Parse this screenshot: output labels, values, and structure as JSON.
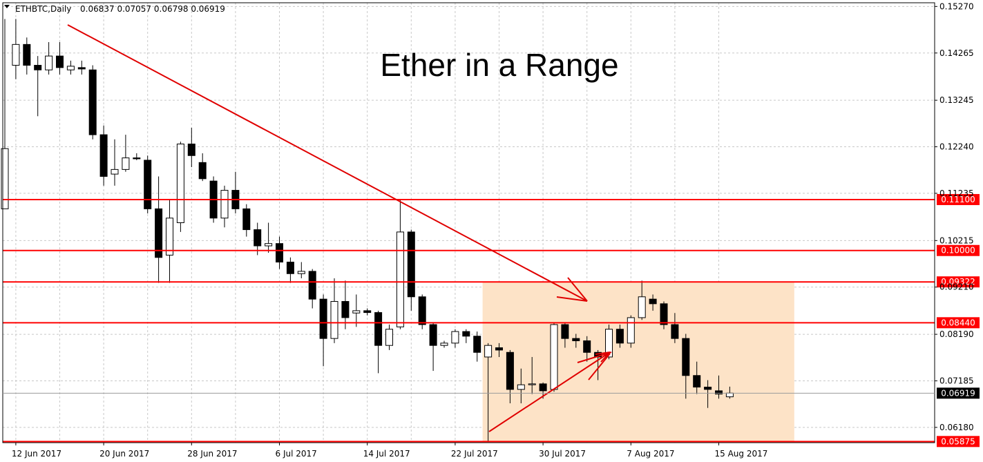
{
  "header": {
    "symbol_text": "ETHBTC,Daily",
    "ohlc_text": "0.06837 0.07057 0.06798 0.06919",
    "menu_icon": "triangle-down-icon"
  },
  "annotation_title": "Ether in a Range",
  "colors": {
    "background": "#ffffff",
    "grid": "#c8c8c8",
    "candle_bull": "#ffffff",
    "candle_bear": "#000000",
    "level_line": "#ff0000",
    "range_box": "#fde3c7",
    "arrow": "#e00000"
  },
  "chart_data": {
    "type": "candlestick",
    "symbol": "ETHBTC",
    "timeframe": "Daily",
    "ylim": [
      0.0585,
      0.1535
    ],
    "y_ticks": [
      "0.15270",
      "0.14265",
      "0.13245",
      "0.12240",
      "0.11235",
      "0.10215",
      "0.09210",
      "0.08190",
      "0.07185",
      "0.06180"
    ],
    "x_ticks": [
      "12 Jun 2017",
      "20 Jun 2017",
      "28 Jun 2017",
      "6 Jul 2017",
      "14 Jul 2017",
      "22 Jul 2017",
      "30 Jul 2017",
      "7 Aug 2017",
      "15 Aug 2017"
    ],
    "grid": true,
    "current_price": "0.06919",
    "levels": [
      {
        "value": 0.111,
        "label": "0.11100"
      },
      {
        "value": 0.1,
        "label": "0.10000"
      },
      {
        "value": 0.09322,
        "label": "0.09322"
      },
      {
        "value": 0.0844,
        "label": "0.08440"
      },
      {
        "value": 0.05875,
        "label": "0.05875"
      }
    ],
    "range_box": {
      "start": "22 Jul 2017",
      "end": "17 Aug 2017",
      "high": 0.09322,
      "low": 0.05875
    },
    "candles": [
      {
        "d": "11 Jun",
        "o": 0.109,
        "h": 0.15,
        "l": 0.109,
        "c": 0.122
      },
      {
        "d": "12 Jun",
        "o": 0.14,
        "h": 0.15,
        "l": 0.137,
        "c": 0.1445
      },
      {
        "d": "13 Jun",
        "o": 0.1445,
        "h": 0.146,
        "l": 0.138,
        "c": 0.14
      },
      {
        "d": "14 Jun",
        "o": 0.14,
        "h": 0.142,
        "l": 0.129,
        "c": 0.139
      },
      {
        "d": "15 Jun",
        "o": 0.139,
        "h": 0.145,
        "l": 0.138,
        "c": 0.142
      },
      {
        "d": "16 Jun",
        "o": 0.142,
        "h": 0.145,
        "l": 0.138,
        "c": 0.1395
      },
      {
        "d": "17 Jun",
        "o": 0.139,
        "h": 0.141,
        "l": 0.138,
        "c": 0.1398
      },
      {
        "d": "18 Jun",
        "o": 0.1395,
        "h": 0.141,
        "l": 0.138,
        "c": 0.1392
      },
      {
        "d": "19 Jun",
        "o": 0.139,
        "h": 0.14,
        "l": 0.124,
        "c": 0.125
      },
      {
        "d": "20 Jun",
        "o": 0.125,
        "h": 0.127,
        "l": 0.114,
        "c": 0.116
      },
      {
        "d": "21 Jun",
        "o": 0.1165,
        "h": 0.124,
        "l": 0.114,
        "c": 0.1175
      },
      {
        "d": "22 Jun",
        "o": 0.1175,
        "h": 0.125,
        "l": 0.117,
        "c": 0.12
      },
      {
        "d": "23 Jun",
        "o": 0.12,
        "h": 0.121,
        "l": 0.1195,
        "c": 0.1198
      },
      {
        "d": "24 Jun",
        "o": 0.1195,
        "h": 0.1205,
        "l": 0.108,
        "c": 0.109
      },
      {
        "d": "25 Jun",
        "o": 0.109,
        "h": 0.116,
        "l": 0.093,
        "c": 0.0985
      },
      {
        "d": "26 Jun",
        "o": 0.099,
        "h": 0.111,
        "l": 0.093,
        "c": 0.107
      },
      {
        "d": "27 Jun",
        "o": 0.106,
        "h": 0.1235,
        "l": 0.104,
        "c": 0.123
      },
      {
        "d": "28 Jun",
        "o": 0.123,
        "h": 0.1265,
        "l": 0.118,
        "c": 0.1205
      },
      {
        "d": "29 Jun",
        "o": 0.119,
        "h": 0.121,
        "l": 0.115,
        "c": 0.1155
      },
      {
        "d": "30 Jun",
        "o": 0.115,
        "h": 0.116,
        "l": 0.106,
        "c": 0.107
      },
      {
        "d": "1 Jul",
        "o": 0.107,
        "h": 0.114,
        "l": 0.105,
        "c": 0.113
      },
      {
        "d": "2 Jul",
        "o": 0.113,
        "h": 0.117,
        "l": 0.108,
        "c": 0.109
      },
      {
        "d": "3 Jul",
        "o": 0.109,
        "h": 0.11,
        "l": 0.103,
        "c": 0.1045
      },
      {
        "d": "4 Jul",
        "o": 0.1045,
        "h": 0.106,
        "l": 0.099,
        "c": 0.101
      },
      {
        "d": "5 Jul",
        "o": 0.101,
        "h": 0.106,
        "l": 0.0995,
        "c": 0.1015
      },
      {
        "d": "6 Jul",
        "o": 0.1015,
        "h": 0.103,
        "l": 0.096,
        "c": 0.0975
      },
      {
        "d": "7 Jul",
        "o": 0.0975,
        "h": 0.0985,
        "l": 0.093,
        "c": 0.095
      },
      {
        "d": "8 Jul",
        "o": 0.095,
        "h": 0.0975,
        "l": 0.094,
        "c": 0.0955
      },
      {
        "d": "9 Jul",
        "o": 0.0955,
        "h": 0.096,
        "l": 0.0875,
        "c": 0.0895
      },
      {
        "d": "10 Jul",
        "o": 0.0895,
        "h": 0.0905,
        "l": 0.075,
        "c": 0.081
      },
      {
        "d": "11 Jul",
        "o": 0.081,
        "h": 0.094,
        "l": 0.08,
        "c": 0.089
      },
      {
        "d": "12 Jul",
        "o": 0.089,
        "h": 0.0935,
        "l": 0.083,
        "c": 0.0855
      },
      {
        "d": "13 Jul",
        "o": 0.0865,
        "h": 0.0905,
        "l": 0.0835,
        "c": 0.087
      },
      {
        "d": "14 Jul",
        "o": 0.087,
        "h": 0.0875,
        "l": 0.086,
        "c": 0.0866
      },
      {
        "d": "15 Jul",
        "o": 0.0866,
        "h": 0.087,
        "l": 0.0735,
        "c": 0.0795
      },
      {
        "d": "16 Jul",
        "o": 0.0795,
        "h": 0.084,
        "l": 0.0785,
        "c": 0.083
      },
      {
        "d": "17 Jul",
        "o": 0.0835,
        "h": 0.111,
        "l": 0.083,
        "c": 0.104
      },
      {
        "d": "18 Jul",
        "o": 0.104,
        "h": 0.1045,
        "l": 0.087,
        "c": 0.09
      },
      {
        "d": "19 Jul",
        "o": 0.09,
        "h": 0.0905,
        "l": 0.083,
        "c": 0.084
      },
      {
        "d": "20 Jul",
        "o": 0.084,
        "h": 0.0845,
        "l": 0.074,
        "c": 0.0795
      },
      {
        "d": "21 Jul",
        "o": 0.0795,
        "h": 0.0805,
        "l": 0.079,
        "c": 0.08
      },
      {
        "d": "22 Jul",
        "o": 0.08,
        "h": 0.083,
        "l": 0.079,
        "c": 0.0825
      },
      {
        "d": "23 Jul",
        "o": 0.0825,
        "h": 0.083,
        "l": 0.08,
        "c": 0.0815
      },
      {
        "d": "24 Jul",
        "o": 0.0815,
        "h": 0.0825,
        "l": 0.076,
        "c": 0.078
      },
      {
        "d": "25 Jul",
        "o": 0.077,
        "h": 0.08,
        "l": 0.0588,
        "c": 0.0795
      },
      {
        "d": "26 Jul",
        "o": 0.079,
        "h": 0.08,
        "l": 0.077,
        "c": 0.0785
      },
      {
        "d": "27 Jul",
        "o": 0.078,
        "h": 0.0785,
        "l": 0.067,
        "c": 0.07
      },
      {
        "d": "28 Jul",
        "o": 0.07,
        "h": 0.0745,
        "l": 0.067,
        "c": 0.071
      },
      {
        "d": "29 Jul",
        "o": 0.071,
        "h": 0.077,
        "l": 0.069,
        "c": 0.0712
      },
      {
        "d": "30 Jul",
        "o": 0.0712,
        "h": 0.0715,
        "l": 0.068,
        "c": 0.0697
      },
      {
        "d": "31 Jul",
        "o": 0.07,
        "h": 0.0845,
        "l": 0.0695,
        "c": 0.084
      },
      {
        "d": "1 Aug",
        "o": 0.084,
        "h": 0.0845,
        "l": 0.079,
        "c": 0.081
      },
      {
        "d": "2 Aug",
        "o": 0.081,
        "h": 0.082,
        "l": 0.079,
        "c": 0.0805
      },
      {
        "d": "3 Aug",
        "o": 0.0805,
        "h": 0.0815,
        "l": 0.076,
        "c": 0.078
      },
      {
        "d": "4 Aug",
        "o": 0.078,
        "h": 0.0785,
        "l": 0.072,
        "c": 0.077
      },
      {
        "d": "5 Aug",
        "o": 0.077,
        "h": 0.084,
        "l": 0.0765,
        "c": 0.083
      },
      {
        "d": "6 Aug",
        "o": 0.083,
        "h": 0.084,
        "l": 0.079,
        "c": 0.08
      },
      {
        "d": "7 Aug",
        "o": 0.08,
        "h": 0.086,
        "l": 0.079,
        "c": 0.0855
      },
      {
        "d": "8 Aug",
        "o": 0.0855,
        "h": 0.0935,
        "l": 0.085,
        "c": 0.09
      },
      {
        "d": "9 Aug",
        "o": 0.0895,
        "h": 0.0905,
        "l": 0.087,
        "c": 0.0885
      },
      {
        "d": "10 Aug",
        "o": 0.0885,
        "h": 0.089,
        "l": 0.083,
        "c": 0.084
      },
      {
        "d": "11 Aug",
        "o": 0.084,
        "h": 0.0865,
        "l": 0.08,
        "c": 0.081
      },
      {
        "d": "12 Aug",
        "o": 0.081,
        "h": 0.082,
        "l": 0.068,
        "c": 0.073
      },
      {
        "d": "13 Aug",
        "o": 0.073,
        "h": 0.076,
        "l": 0.069,
        "c": 0.0705
      },
      {
        "d": "14 Aug",
        "o": 0.0705,
        "h": 0.072,
        "l": 0.066,
        "c": 0.07
      },
      {
        "d": "15 Aug",
        "o": 0.0697,
        "h": 0.073,
        "l": 0.068,
        "c": 0.069
      },
      {
        "d": "16 Aug",
        "o": 0.0684,
        "h": 0.0706,
        "l": 0.068,
        "c": 0.0692
      }
    ]
  }
}
